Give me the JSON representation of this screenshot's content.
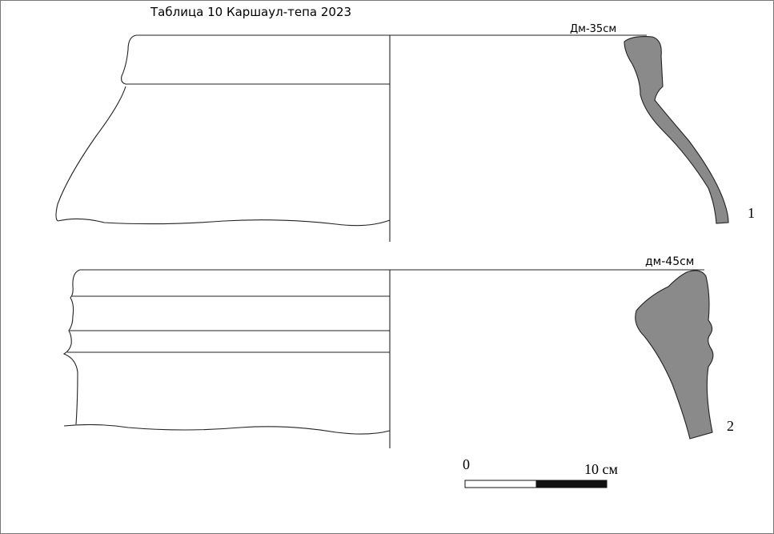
{
  "header": {
    "title": "Таблица 10  Каршаул-тепа 2023"
  },
  "figures": [
    {
      "diameter": "Дм-35см",
      "number": "1"
    },
    {
      "diameter": "дм-45см",
      "number": "2"
    }
  ],
  "scale_bar": {
    "start": "0",
    "end": "10 см"
  }
}
